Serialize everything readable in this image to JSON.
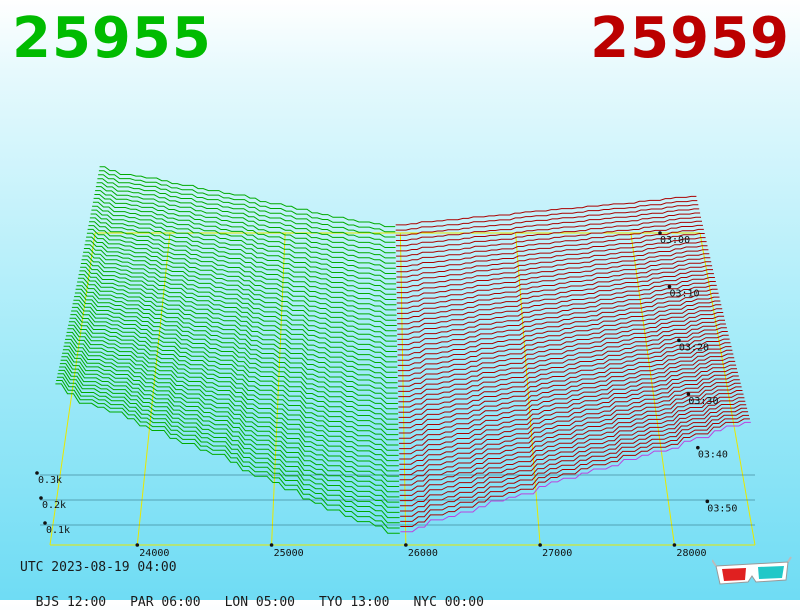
{
  "bid_price": "25955",
  "ask_price": "25959",
  "utc_label": "UTC 2023-08-19 04:00",
  "timezones": [
    {
      "label": "BJS 12:00"
    },
    {
      "label": "PAR 06:00"
    },
    {
      "label": "LON 05:00"
    },
    {
      "label": "TYO 13:00"
    },
    {
      "label": "NYC 00:00"
    }
  ],
  "chart_data": {
    "type": "area",
    "price_ticks": [
      24000,
      25000,
      26000,
      27000,
      28000
    ],
    "price_tick_labels": [
      "24000",
      "25000",
      "26000",
      "27000",
      "28000"
    ],
    "time_ticks": [
      "03:00",
      "03:10",
      "03:20",
      "03:30",
      "03:40",
      "03:50"
    ],
    "volume_ticks": [
      0.1,
      0.2,
      0.3
    ],
    "volume_tick_labels": [
      "0.1k",
      "0.2k",
      "0.3k"
    ],
    "xlim": [
      23350,
      28600
    ],
    "series": [
      {
        "side": "bid",
        "color": "#00aa00",
        "price_range": [
          23350,
          25955
        ],
        "max_cumulative_volume": 0.64
      },
      {
        "side": "ask",
        "color": "#aa0000",
        "price_range": [
          25959,
          28600
        ],
        "max_cumulative_volume": 0.58
      }
    ],
    "snapshots": 60,
    "grid_color": "#e8e800"
  }
}
